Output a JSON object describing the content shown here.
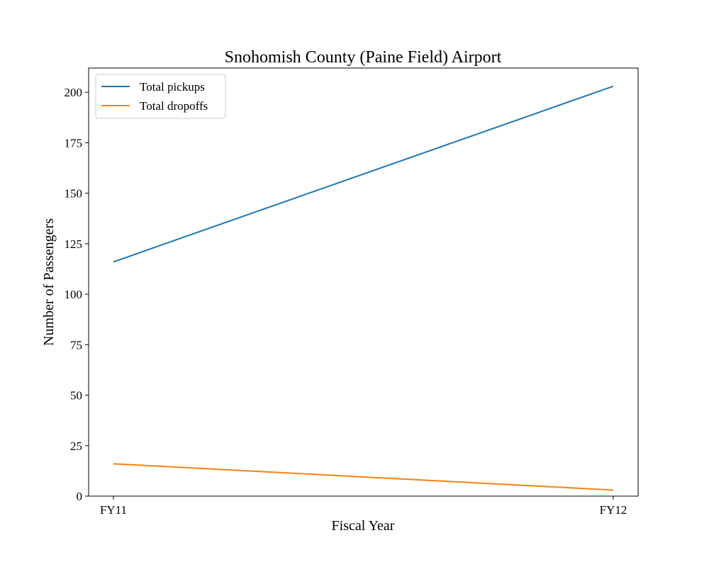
{
  "chart_data": {
    "type": "line",
    "title": "Snohomish County (Paine Field) Airport",
    "xlabel": "Fiscal Year",
    "ylabel": "Number of Passengers",
    "categories": [
      "FY11",
      "FY12"
    ],
    "ylim": [
      0,
      212
    ],
    "yticks": [
      0,
      25,
      50,
      75,
      100,
      125,
      150,
      175,
      200
    ],
    "grid": false,
    "legend_position": "top-left",
    "series": [
      {
        "name": "Total pickups",
        "values": [
          116,
          203
        ],
        "color": "#1f77b4"
      },
      {
        "name": "Total dropoffs",
        "values": [
          16,
          3
        ],
        "color": "#ff7f0e"
      }
    ]
  }
}
